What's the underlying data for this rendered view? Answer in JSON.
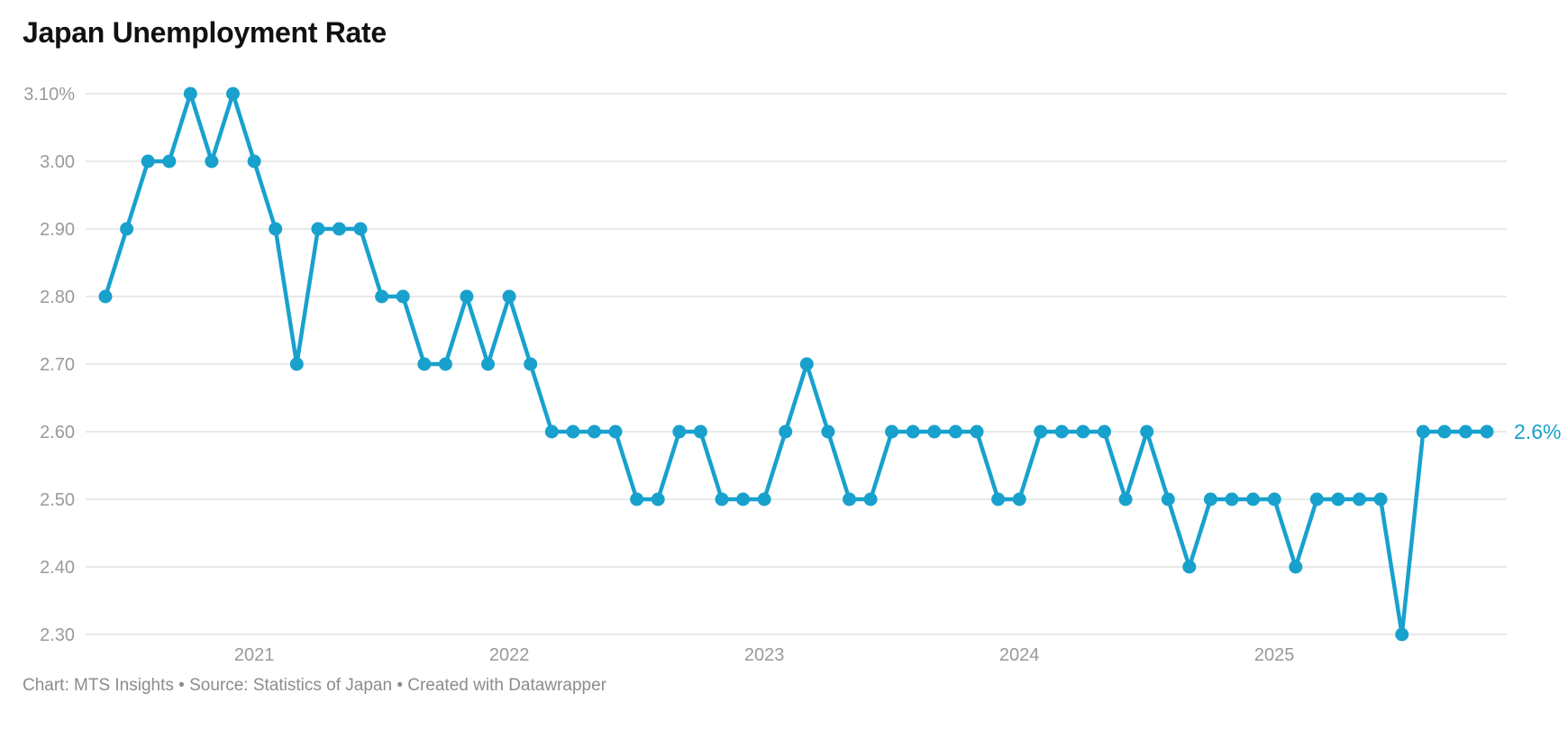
{
  "title": "Japan Unemployment Rate",
  "footer": {
    "text": "Chart: MTS Insights • Source: Statistics of Japan • Created with Datawrapper"
  },
  "chart_data": {
    "type": "line",
    "title": "Japan Unemployment Rate",
    "unit": "percent",
    "x": [
      "Jun 2020",
      "Jul 2020",
      "Aug 2020",
      "Sep 2020",
      "Oct 2020",
      "Nov 2020",
      "Dec 2020",
      "Jan 2021",
      "Feb 2021",
      "Mar 2021",
      "Apr 2021",
      "May 2021",
      "Jun 2021",
      "Jul 2021",
      "Aug 2021",
      "Sep 2021",
      "Oct 2021",
      "Nov 2021",
      "Dec 2021",
      "Jan 2022",
      "Feb 2022",
      "Mar 2022",
      "Apr 2022",
      "May 2022",
      "Jun 2022",
      "Jul 2022",
      "Aug 2022",
      "Sep 2022",
      "Oct 2022",
      "Nov 2022",
      "Dec 2022",
      "Jan 2023",
      "Feb 2023",
      "Mar 2023",
      "Apr 2023",
      "May 2023",
      "Jun 2023",
      "Jul 2023",
      "Aug 2023",
      "Sep 2023",
      "Oct 2023",
      "Nov 2023",
      "Dec 2023",
      "Jan 2024",
      "Feb 2024",
      "Mar 2024",
      "Apr 2024",
      "May 2024",
      "Jun 2024",
      "Jul 2024",
      "Aug 2024",
      "Sep 2024",
      "Oct 2024",
      "Nov 2024",
      "Dec 2024",
      "Jan 2025",
      "Feb 2025",
      "Mar 2025",
      "Apr 2025",
      "May 2025",
      "Jun 2025",
      "Jul 2025",
      "Aug 2025",
      "Sep 2025",
      "Oct 2025",
      "Nov 2025"
    ],
    "values": [
      2.8,
      2.9,
      3.0,
      3.0,
      3.1,
      3.0,
      3.1,
      3.0,
      2.9,
      2.7,
      2.9,
      2.9,
      2.9,
      2.8,
      2.8,
      2.7,
      2.7,
      2.8,
      2.7,
      2.8,
      2.7,
      2.6,
      2.6,
      2.6,
      2.6,
      2.5,
      2.5,
      2.6,
      2.6,
      2.5,
      2.5,
      2.5,
      2.6,
      2.7,
      2.6,
      2.5,
      2.5,
      2.6,
      2.6,
      2.6,
      2.6,
      2.6,
      2.5,
      2.5,
      2.6,
      2.6,
      2.6,
      2.6,
      2.5,
      2.6,
      2.5,
      2.4,
      2.5,
      2.5,
      2.5,
      2.5,
      2.4,
      2.5,
      2.5,
      2.5,
      2.5,
      2.3,
      2.6,
      2.6,
      2.6,
      2.6
    ],
    "ylim": [
      2.3,
      3.1
    ],
    "y_ticks": [
      {
        "value": 3.1,
        "label": "3.10%"
      },
      {
        "value": 3.0,
        "label": "3.00"
      },
      {
        "value": 2.9,
        "label": "2.90"
      },
      {
        "value": 2.8,
        "label": "2.80"
      },
      {
        "value": 2.7,
        "label": "2.70"
      },
      {
        "value": 2.6,
        "label": "2.60"
      },
      {
        "value": 2.5,
        "label": "2.50"
      },
      {
        "value": 2.4,
        "label": "2.40"
      },
      {
        "value": 2.3,
        "label": "2.30"
      }
    ],
    "x_ticks": [
      {
        "label": "2021",
        "month_index": 7
      },
      {
        "label": "2022",
        "month_index": 19
      },
      {
        "label": "2023",
        "month_index": 31
      },
      {
        "label": "2024",
        "month_index": 43
      },
      {
        "label": "2025",
        "month_index": 55
      }
    ],
    "end_label": "2.6%",
    "grid": true,
    "legend": "none",
    "colors": {
      "line": "#18A1CD",
      "marker": "#18A1CD",
      "grid": "#E9E9E9",
      "axis_label": "#9A9A9A",
      "title": "#111111",
      "footer": "#8C8C8C"
    }
  }
}
